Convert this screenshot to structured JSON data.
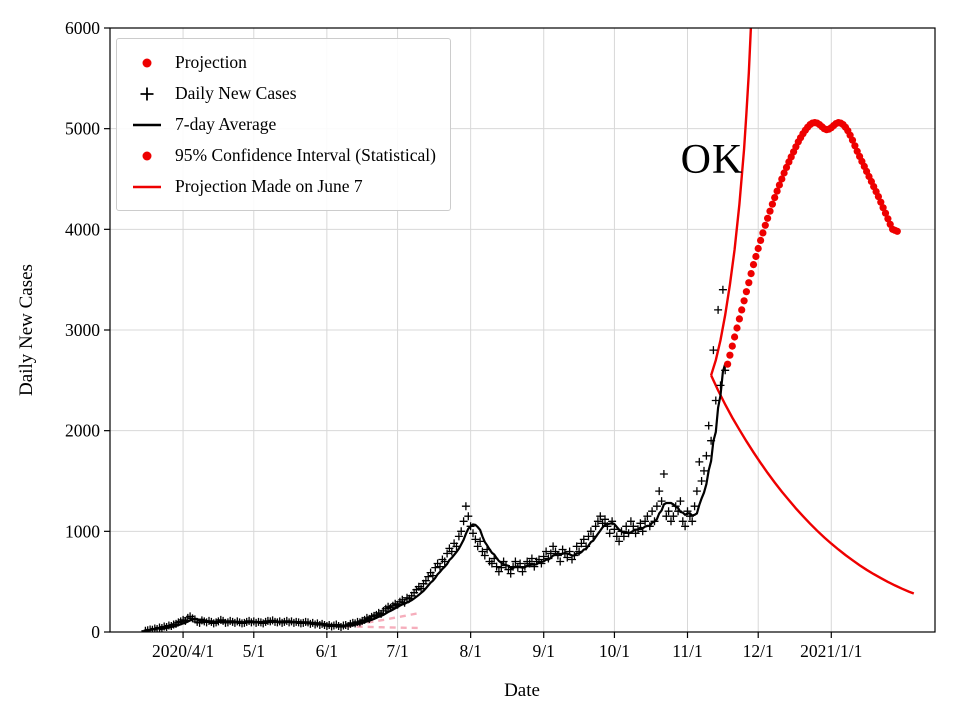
{
  "chart_data": {
    "type": "line",
    "title": "",
    "xlabel": "Date",
    "ylabel": "Daily New Cases",
    "x_unit": "days since 2020-03-01",
    "xlim": [
      0,
      350
    ],
    "ylim": [
      0,
      6000
    ],
    "grid": true,
    "annotation": {
      "text": "OK"
    },
    "x_ticks": [
      {
        "day": 31,
        "label": "2020/4/1"
      },
      {
        "day": 61,
        "label": "5/1"
      },
      {
        "day": 92,
        "label": "6/1"
      },
      {
        "day": 122,
        "label": "7/1"
      },
      {
        "day": 153,
        "label": "8/1"
      },
      {
        "day": 184,
        "label": "9/1"
      },
      {
        "day": 214,
        "label": "10/1"
      },
      {
        "day": 245,
        "label": "11/1"
      },
      {
        "day": 275,
        "label": "12/1"
      },
      {
        "day": 306,
        "label": "2021/1/1"
      }
    ],
    "y_ticks": [
      0,
      1000,
      2000,
      3000,
      4000,
      5000,
      6000
    ],
    "colors": {
      "projection": "#ee0000",
      "cases": "#000000",
      "average": "#000000",
      "june7": "#f6aebc",
      "grid": "#d8d8d8"
    },
    "legend": {
      "position": "upper left",
      "entries": [
        {
          "label": "Projection",
          "marker": "dot",
          "color": "#ee0000"
        },
        {
          "label": "Daily New Cases",
          "marker": "plus",
          "color": "#000000"
        },
        {
          "label": "7-day Average",
          "marker": "line",
          "color": "#000000"
        },
        {
          "label": "95% Confidence Interval (Statistical)",
          "marker": "dot",
          "color": "#ee0000"
        },
        {
          "label": "Projection Made on June 7",
          "marker": "line",
          "color": "#ee0000"
        }
      ]
    },
    "series": {
      "daily_new_cases": {
        "start_day": 15,
        "values": [
          12,
          18,
          25,
          22,
          35,
          30,
          45,
          40,
          55,
          50,
          65,
          60,
          75,
          80,
          95,
          105,
          120,
          110,
          140,
          155,
          135,
          125,
          100,
          90,
          115,
          105,
          95,
          110,
          100,
          85,
          95,
          105,
          120,
          110,
          90,
          95,
          110,
          100,
          90,
          105,
          95,
          85,
          90,
          100,
          110,
          95,
          105,
          90,
          100,
          95,
          85,
          100,
          110,
          105,
          115,
          100,
          95,
          105,
          90,
          100,
          110,
          95,
          105,
          90,
          100,
          95,
          85,
          90,
          100,
          95,
          80,
          90,
          75,
          85,
          70,
          80,
          70,
          60,
          70,
          55,
          65,
          75,
          60,
          50,
          65,
          70,
          60,
          80,
          90,
          85,
          100,
          95,
          110,
          120,
          140,
          130,
          150,
          160,
          170,
          190,
          180,
          210,
          230,
          250,
          240,
          260,
          280,
          270,
          300,
          320,
          290,
          340,
          330,
          360,
          390,
          420,
          450,
          430,
          480,
          510,
          550,
          590,
          560,
          640,
          680,
          650,
          720,
          700,
          780,
          830,
          800,
          880,
          850,
          950,
          1000,
          1100,
          1250,
          1150,
          1050,
          980,
          920,
          850,
          900,
          800,
          760,
          820,
          700,
          680,
          730,
          650,
          600,
          640,
          700,
          660,
          620,
          580,
          650,
          700,
          640,
          680,
          600,
          650,
          700,
          680,
          730,
          650,
          700,
          720,
          680,
          750,
          800,
          730,
          780,
          850,
          800,
          760,
          700,
          820,
          780,
          740,
          800,
          720,
          760,
          850,
          800,
          880,
          920,
          850,
          950,
          1000,
          950,
          1050,
          1100,
          1150,
          1080,
          1120,
          1050,
          980,
          1100,
          1020,
          950,
          900,
          1000,
          950,
          1050,
          980,
          1100,
          1050,
          980,
          1020,
          1080,
          1000,
          1100,
          1150,
          1050,
          1200,
          1100,
          1250,
          1400,
          1300,
          1570,
          1150,
          1200,
          1100,
          1150,
          1250,
          1200,
          1300,
          1100,
          1050,
          1200,
          1150,
          1100,
          1250,
          1400,
          1690,
          1500,
          1600,
          1750,
          2050,
          1900,
          2800,
          2300,
          3200,
          2450,
          3400,
          2600
        ]
      },
      "seven_day_average": {
        "derived_from": "daily_new_cases",
        "window": 7
      },
      "projection": {
        "start_day": 262,
        "values": [
          2660,
          2750,
          2840,
          2930,
          3020,
          3110,
          3200,
          3290,
          3380,
          3470,
          3560,
          3650,
          3730,
          3810,
          3890,
          3965,
          4040,
          4110,
          4180,
          4250,
          4315,
          4380,
          4440,
          4500,
          4560,
          4615,
          4670,
          4720,
          4770,
          4820,
          4870,
          4910,
          4950,
          4985,
          5015,
          5040,
          5055,
          5060,
          5055,
          5040,
          5020,
          5000,
          4990,
          4995,
          5010,
          5030,
          5050,
          5060,
          5055,
          5040,
          5015,
          4980,
          4935,
          4885,
          4830,
          4775,
          4725,
          4675,
          4625,
          4575,
          4525,
          4475,
          4425,
          4375,
          4325,
          4270,
          4215,
          4160,
          4105,
          4050,
          4000,
          3990,
          3980
        ]
      },
      "ci_upper": [
        [
          255,
          2550
        ],
        [
          257,
          2700
        ],
        [
          259,
          2900
        ],
        [
          261,
          3150
        ],
        [
          263,
          3450
        ],
        [
          265,
          3800
        ],
        [
          267,
          4250
        ],
        [
          269,
          4800
        ],
        [
          270,
          5150
        ],
        [
          271,
          5550
        ],
        [
          272,
          6050
        ],
        [
          273,
          6600
        ]
      ],
      "ci_lower": [
        [
          255,
          2550
        ],
        [
          258,
          2400
        ],
        [
          261,
          2260
        ],
        [
          264,
          2130
        ],
        [
          267,
          2010
        ],
        [
          270,
          1895
        ],
        [
          273,
          1785
        ],
        [
          276,
          1680
        ],
        [
          279,
          1580
        ],
        [
          282,
          1485
        ],
        [
          285,
          1395
        ],
        [
          288,
          1310
        ],
        [
          291,
          1228
        ],
        [
          294,
          1150
        ],
        [
          297,
          1076
        ],
        [
          300,
          1006
        ],
        [
          303,
          940
        ],
        [
          306,
          878
        ],
        [
          309,
          820
        ],
        [
          312,
          765
        ],
        [
          315,
          713
        ],
        [
          318,
          664
        ],
        [
          321,
          618
        ],
        [
          324,
          575
        ],
        [
          327,
          535
        ],
        [
          330,
          498
        ],
        [
          333,
          463
        ],
        [
          336,
          430
        ],
        [
          339,
          400
        ],
        [
          341,
          382
        ]
      ],
      "june7_upper": [
        [
          100,
          58
        ],
        [
          104,
          72
        ],
        [
          108,
          88
        ],
        [
          112,
          104
        ],
        [
          116,
          120
        ],
        [
          120,
          138
        ],
        [
          124,
          156
        ],
        [
          128,
          174
        ],
        [
          132,
          192
        ]
      ],
      "june7_lower": [
        [
          100,
          58
        ],
        [
          108,
          52
        ],
        [
          116,
          47
        ],
        [
          124,
          43
        ],
        [
          132,
          40
        ]
      ]
    }
  }
}
